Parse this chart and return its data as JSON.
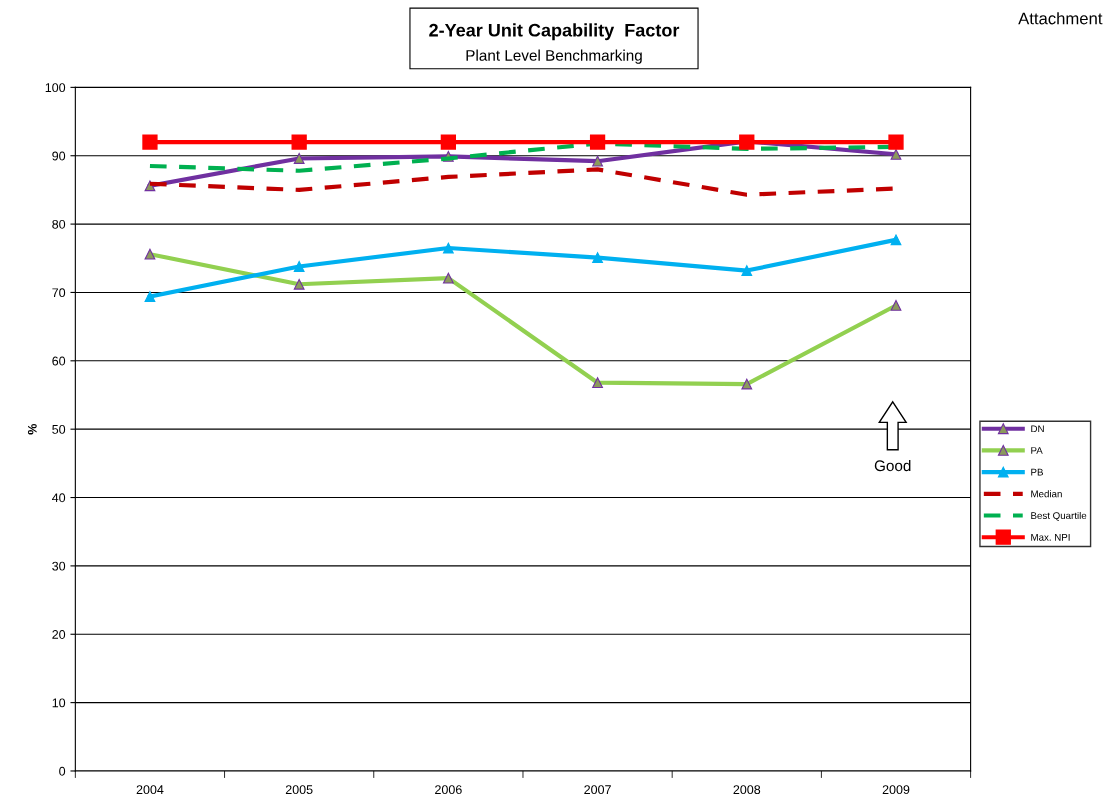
{
  "chart_data": {
    "type": "line",
    "title": "2-Year Unit Capability  Factor",
    "subtitle": "Plant Level Benchmarking",
    "ylabel": "%",
    "categories": [
      "2004",
      "2005",
      "2006",
      "2007",
      "2008",
      "2009"
    ],
    "series": [
      {
        "name": "DN",
        "color": "#7030a0",
        "marker": "triangle",
        "line_style": "solid",
        "values": [
          85.6,
          89.6,
          89.9,
          89.2,
          92.1,
          90.2
        ]
      },
      {
        "name": "PA",
        "color": "#92d050",
        "marker": "triangle",
        "line_style": "solid",
        "values": [
          75.6,
          71.2,
          72.1,
          56.8,
          56.6,
          68.1
        ]
      },
      {
        "name": "PB",
        "color": "#00b0f0",
        "marker": "triangle",
        "line_style": "solid",
        "values": [
          69.4,
          73.8,
          76.5,
          75.1,
          73.2,
          77.7
        ]
      },
      {
        "name": "Median",
        "color": "#c00000",
        "marker": "none",
        "line_style": "dashed",
        "values": [
          85.9,
          85.0,
          86.9,
          88.0,
          84.3,
          85.2
        ]
      },
      {
        "name": "Best Quartile",
        "color": "#00b050",
        "marker": "none",
        "line_style": "dashed",
        "values": [
          88.5,
          87.8,
          89.6,
          91.8,
          91.0,
          91.3
        ]
      },
      {
        "name": "Max. NPI",
        "color": "#ff0000",
        "marker": "square",
        "line_style": "solid",
        "values": [
          92,
          92,
          92,
          92,
          92,
          92
        ]
      }
    ],
    "ylim": [
      0,
      100
    ],
    "yticks": [
      0,
      10,
      20,
      30,
      40,
      50,
      60,
      70,
      80,
      90,
      100
    ],
    "grid": "y",
    "legend": "right",
    "annotations": [
      "Good",
      "Attachment"
    ]
  }
}
